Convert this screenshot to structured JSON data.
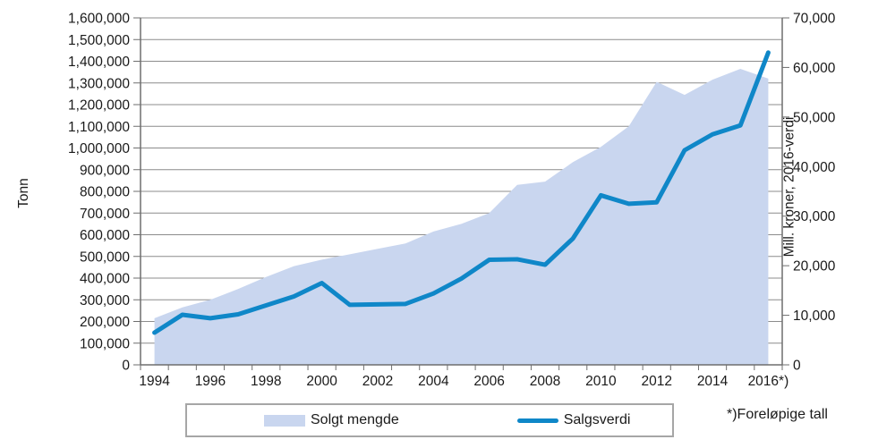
{
  "page": {
    "footnote": "*)Foreløpige tall"
  },
  "colors": {
    "area_fill": "#c9d6ef",
    "line_stroke": "#0f87c8",
    "gridline": "#8c8c8c",
    "axis": "#6e6e6e",
    "text": "#1a1a1a",
    "legend_border": "#a6a6a6"
  },
  "legend": {
    "items": [
      {
        "label": "Solgt mengde",
        "type": "area"
      },
      {
        "label": "Salgsverdi",
        "type": "line"
      }
    ]
  },
  "chart_data": {
    "type": "area",
    "title": "",
    "x": [
      1994,
      1995,
      1996,
      1997,
      1998,
      1999,
      2000,
      2001,
      2002,
      2003,
      2004,
      2005,
      2006,
      2007,
      2008,
      2009,
      2010,
      2011,
      2012,
      2013,
      2014,
      2015,
      2016
    ],
    "x_tick_labels": [
      "1994",
      "1996",
      "1998",
      "2000",
      "2002",
      "2004",
      "2006",
      "2008",
      "2010",
      "2012",
      "2014",
      "2016*)"
    ],
    "series": [
      {
        "name": "Solgt mengde",
        "type": "area",
        "yaxis": "left",
        "unit": "tonn",
        "values": [
          215000,
          265000,
          300000,
          350000,
          405000,
          455000,
          485000,
          510000,
          535000,
          560000,
          615000,
          650000,
          700000,
          830000,
          845000,
          935000,
          1005000,
          1100000,
          1305000,
          1245000,
          1315000,
          1365000,
          1320000
        ]
      },
      {
        "name": "Salgsverdi",
        "type": "line",
        "yaxis": "right",
        "unit": "mill. kroner, 2016-verdi",
        "values": [
          6500,
          10100,
          9400,
          10200,
          12000,
          13800,
          16500,
          12100,
          12200,
          12300,
          14400,
          17400,
          21200,
          21300,
          20200,
          25500,
          34200,
          32500,
          32800,
          43300,
          46500,
          48300,
          63000
        ]
      }
    ],
    "left_axis": {
      "label": "Tonn",
      "range": [
        0,
        1600000
      ],
      "tick_step": 100000
    },
    "right_axis": {
      "label": "Mill. kroner, 2016-verdi",
      "range": [
        0,
        70000
      ],
      "tick_step": 10000
    },
    "grid": true,
    "legend_position": "bottom",
    "footnote": "*)Foreløpige tall"
  }
}
